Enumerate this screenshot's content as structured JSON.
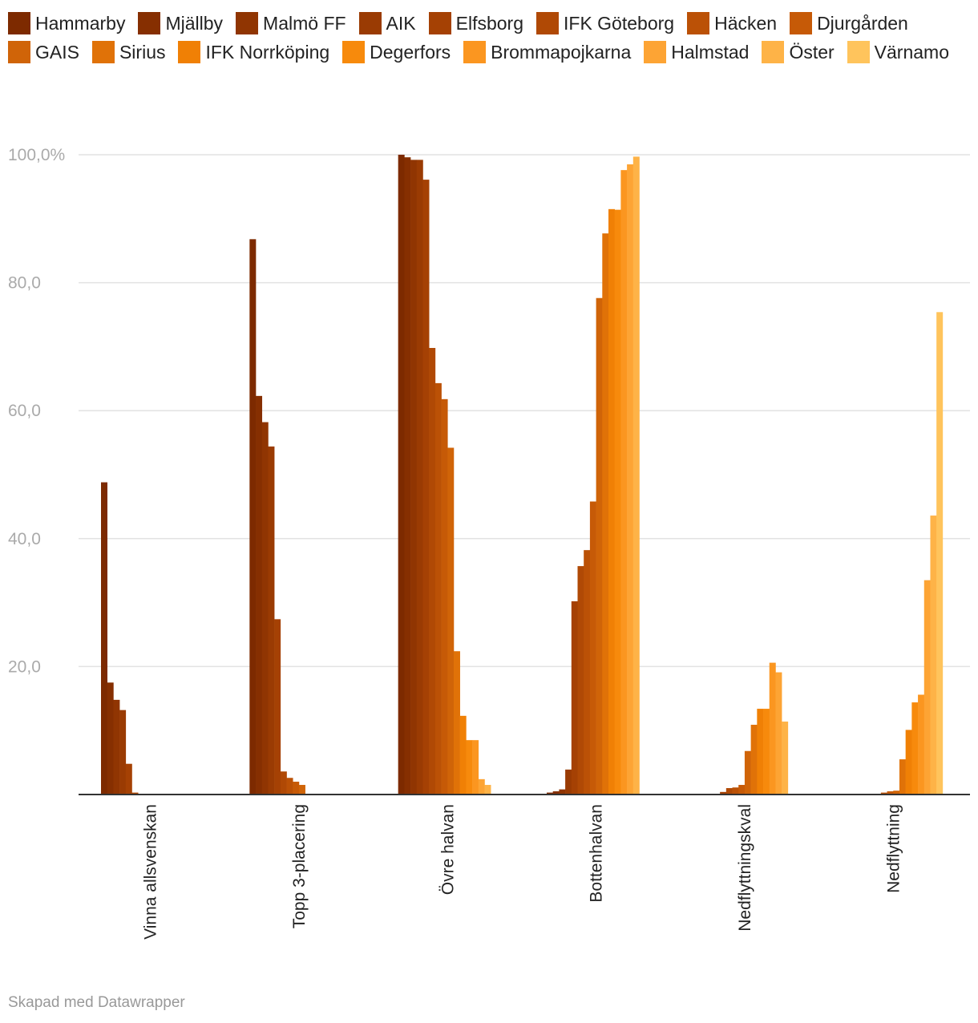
{
  "chart_data": {
    "type": "bar",
    "categories": [
      "Vinna allsvenskan",
      "Topp 3-placering",
      "Övre halvan",
      "Bottenhalvan",
      "Nedflyttningskval",
      "Nedflyttning"
    ],
    "ylim": [
      0,
      100
    ],
    "y_ticks": [
      "20,0",
      "40,0",
      "60,0",
      "80,0",
      "100,0%"
    ],
    "y_tick_values": [
      20,
      40,
      60,
      80,
      100
    ],
    "grid": true,
    "legend_position": "top",
    "series": [
      {
        "name": "Hammarby",
        "color": "#7d2a00",
        "values": [
          48.8,
          86.8,
          100,
          0.3,
          0,
          0
        ]
      },
      {
        "name": "Mjällby",
        "color": "#862f01",
        "values": [
          17.5,
          62.3,
          99.6,
          0.5,
          0,
          0
        ]
      },
      {
        "name": "Malmö FF",
        "color": "#903502",
        "values": [
          14.8,
          58.2,
          99.2,
          0.8,
          0,
          0
        ]
      },
      {
        "name": "AIK",
        "color": "#9a3b03",
        "values": [
          13.2,
          54.4,
          99.2,
          3.9,
          0,
          0
        ]
      },
      {
        "name": "Elfsborg",
        "color": "#a54104",
        "values": [
          4.8,
          27.4,
          96.1,
          30.2,
          0.4,
          0
        ]
      },
      {
        "name": "IFK Göteborg",
        "color": "#b04905",
        "values": [
          0.3,
          3.6,
          69.8,
          35.7,
          1.0,
          0
        ]
      },
      {
        "name": "Häcken",
        "color": "#bb5106",
        "values": [
          0,
          2.6,
          64.3,
          38.2,
          1.1,
          0.3
        ]
      },
      {
        "name": "Djurgården",
        "color": "#c65a07",
        "values": [
          0,
          2.0,
          61.8,
          45.8,
          1.5,
          0.5
        ]
      },
      {
        "name": "GAIS",
        "color": "#d06408",
        "values": [
          0,
          1.5,
          54.2,
          77.6,
          6.8,
          0.6
        ]
      },
      {
        "name": "Sirius",
        "color": "#e07208",
        "values": [
          0,
          0,
          22.4,
          87.7,
          10.9,
          5.5
        ]
      },
      {
        "name": "IFK Norrköping",
        "color": "#f08005",
        "values": [
          0,
          0,
          12.3,
          91.5,
          13.4,
          10.1
        ]
      },
      {
        "name": "Degerfors",
        "color": "#f78a0c",
        "values": [
          0,
          0,
          8.5,
          91.4,
          13.4,
          14.4
        ]
      },
      {
        "name": "Brommapojkarna",
        "color": "#fb9620",
        "values": [
          0,
          0,
          8.5,
          97.6,
          20.6,
          15.6
        ]
      },
      {
        "name": "Halmstad",
        "color": "#fda434",
        "values": [
          0,
          0,
          2.4,
          98.5,
          19.1,
          33.5
        ]
      },
      {
        "name": "Öster",
        "color": "#feb347",
        "values": [
          0,
          0,
          1.5,
          99.7,
          11.4,
          43.6
        ]
      },
      {
        "name": "Värnamo",
        "color": "#ffc45c",
        "values": [
          0,
          0,
          0,
          0,
          0,
          75.4
        ]
      }
    ]
  },
  "credit": "Skapad med Datawrapper"
}
